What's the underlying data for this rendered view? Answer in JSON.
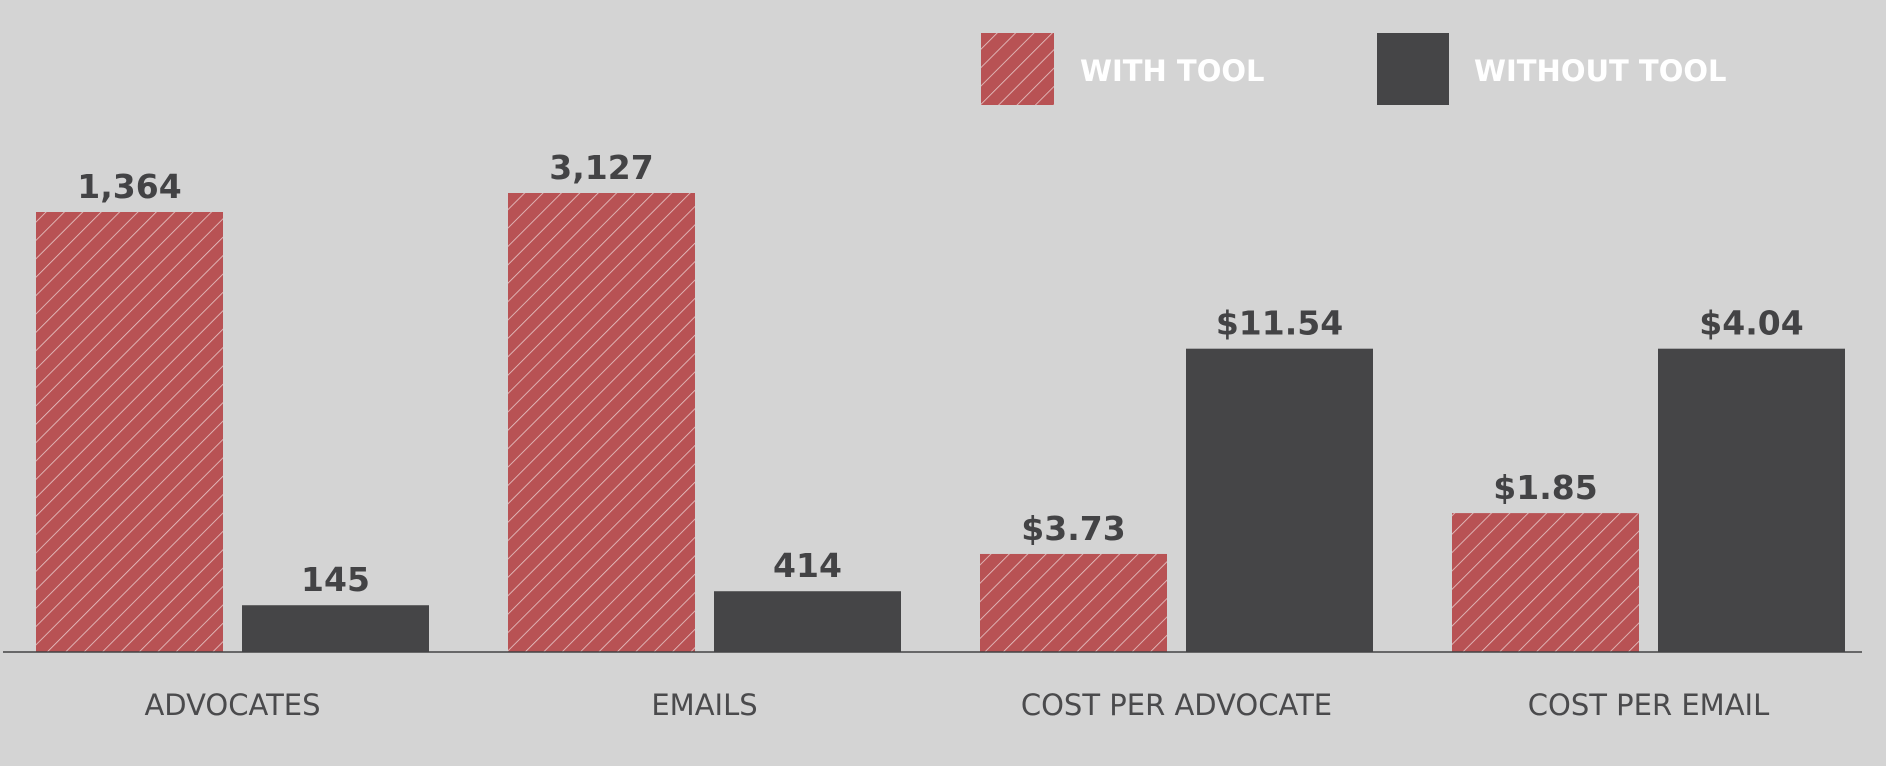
{
  "chart_data": {
    "type": "bar",
    "categories": [
      "ADVOCATES",
      "EMAILS",
      "COST PER ADVOCATE",
      "COST PER EMAIL"
    ],
    "series": [
      {
        "name": "WITH TOOL",
        "values": [
          1364,
          3127,
          3.73,
          1.85
        ],
        "labels": [
          "1,364",
          "3,127",
          "$3.73",
          "$1.85"
        ],
        "color": "#b85254",
        "pattern": "diagonal-hatch"
      },
      {
        "name": "WITHOUT TOOL",
        "values": [
          145,
          414,
          11.54,
          4.04
        ],
        "labels": [
          "145",
          "414",
          "$11.54",
          "$4.04"
        ],
        "color": "#454547",
        "pattern": "solid"
      }
    ],
    "scale": "each category pair is scaled independently",
    "legend_position": "top-right",
    "grid": false,
    "colors": {
      "background": "#d4d4d4",
      "baseline": "#434345",
      "value_text": "#434345",
      "category_text": "#4a4a4c",
      "legend_text": "#ffffff"
    }
  }
}
